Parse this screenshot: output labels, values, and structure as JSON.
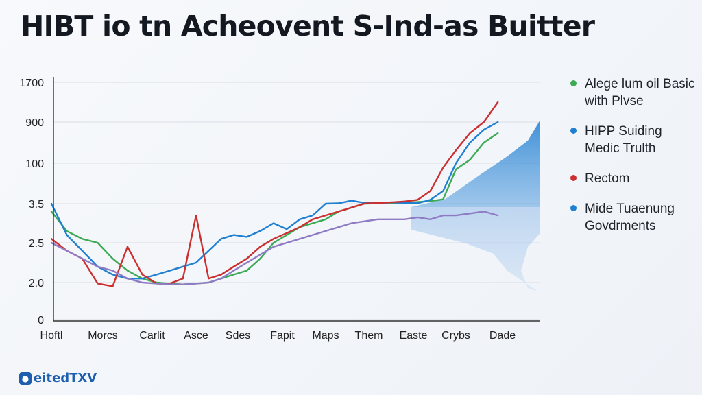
{
  "title": "HIBT io tn Acheovent S-Ind-as Buitter",
  "logo": {
    "text": "eitedTXV"
  },
  "chart_data": {
    "type": "line",
    "title": "HIBT io tn Acheovent S-Ind-as Buitter",
    "xlabel": "",
    "ylabel": "",
    "y_scale": "categorical (non-linear tick labels as printed)",
    "y_ticks": [
      "1700",
      "900",
      "100",
      "3.5",
      "2.5",
      "2.0",
      "0"
    ],
    "x_ticks": [
      "Hoftl",
      "Morcs",
      "Carlit",
      "Asce",
      "Sdes",
      "Fapit",
      "Maps",
      "Them",
      "Easte",
      "Crybs",
      "Dade"
    ],
    "grid": true,
    "legend_position": "right",
    "series": [
      {
        "name": "Alege lum oil Basic with Plvse",
        "color": "#3daa55",
        "x": [
          0,
          0.3,
          0.6,
          0.9,
          1.2,
          1.5,
          1.8,
          2.1,
          2.4,
          2.7,
          3.0,
          3.3,
          3.6,
          3.9,
          4.2,
          4.5,
          4.8,
          5.1,
          5.4,
          5.7,
          6.0,
          6.3,
          6.6,
          6.9,
          7.2,
          7.5,
          7.8,
          8.1,
          8.4,
          8.7,
          9.0,
          9.3,
          9.6,
          9.9
        ],
        "y": [
          3.3,
          2.8,
          2.6,
          2.5,
          2.3,
          2.15,
          2.05,
          2.0,
          1.95,
          1.9,
          1.95,
          2.0,
          2.05,
          2.1,
          2.15,
          2.3,
          2.5,
          2.7,
          2.9,
          3.0,
          3.1,
          3.3,
          3.4,
          3.5,
          3.6,
          3.7,
          3.8,
          4.0,
          4.3,
          5.0,
          60,
          120,
          300,
          500
        ]
      },
      {
        "name": "HIPP Suiding Medic Trulth",
        "color": "#1f7fd0",
        "x": [
          0,
          0.3,
          0.6,
          0.9,
          1.2,
          1.5,
          1.8,
          2.1,
          2.4,
          2.7,
          3.0,
          3.3,
          3.6,
          3.9,
          4.2,
          4.5,
          4.8,
          5.1,
          5.4,
          5.7,
          6.0,
          6.3,
          6.6,
          6.9,
          7.2,
          7.5,
          7.8,
          8.1,
          8.4,
          8.7,
          9.0,
          9.3,
          9.6,
          9.9
        ],
        "y": [
          3.5,
          2.7,
          2.4,
          2.2,
          2.1,
          2.05,
          2.05,
          2.1,
          2.15,
          2.2,
          2.25,
          2.4,
          2.6,
          2.7,
          2.65,
          2.8,
          3.0,
          2.85,
          3.1,
          3.2,
          3.5,
          3.6,
          4.5,
          3.7,
          3.6,
          3.9,
          3.7,
          3.6,
          4.8,
          10,
          100,
          300,
          600,
          900
        ]
      },
      {
        "name": "Rectom",
        "color": "#cc2f2f",
        "x": [
          0,
          0.3,
          0.6,
          0.9,
          1.2,
          1.5,
          1.8,
          2.1,
          2.4,
          2.7,
          3.0,
          3.3,
          3.6,
          3.9,
          4.2,
          4.5,
          4.8,
          5.1,
          5.4,
          5.7,
          6.0,
          6.3,
          6.6,
          6.9,
          7.2,
          7.5,
          7.8,
          8.1,
          8.4,
          8.7,
          9.0,
          9.3,
          9.6,
          9.9
        ],
        "y": [
          2.6,
          2.4,
          2.3,
          1.95,
          1.8,
          2.45,
          2.1,
          1.95,
          1.95,
          2.05,
          3.2,
          2.05,
          2.1,
          2.2,
          2.3,
          2.45,
          2.6,
          2.75,
          2.9,
          3.1,
          3.2,
          3.3,
          3.4,
          3.55,
          3.7,
          3.9,
          4.2,
          4.8,
          10,
          70,
          200,
          500,
          900,
          1300
        ]
      },
      {
        "name": "Mide Tuaenung Govdrments",
        "color": "#8f7bc4",
        "x": [
          0,
          0.3,
          0.6,
          0.9,
          1.2,
          1.5,
          1.8,
          2.1,
          2.4,
          2.7,
          3.0,
          3.3,
          3.6,
          3.9,
          4.2,
          4.5,
          4.8,
          5.1,
          5.4,
          5.7,
          6.0,
          6.3,
          6.6,
          6.9,
          7.2,
          7.5,
          7.8,
          8.1,
          8.4,
          8.7,
          9.0,
          9.3,
          9.6,
          9.9
        ],
        "y": [
          2.5,
          2.4,
          2.3,
          2.2,
          2.15,
          2.05,
          2.0,
          1.95,
          1.9,
          1.9,
          1.95,
          2.0,
          2.05,
          2.15,
          2.25,
          2.35,
          2.45,
          2.5,
          2.6,
          2.7,
          2.8,
          2.9,
          3.0,
          3.05,
          3.1,
          3.1,
          3.1,
          3.15,
          3.1,
          3.2,
          3.2,
          3.25,
          3.3,
          3.2
        ]
      }
    ]
  }
}
